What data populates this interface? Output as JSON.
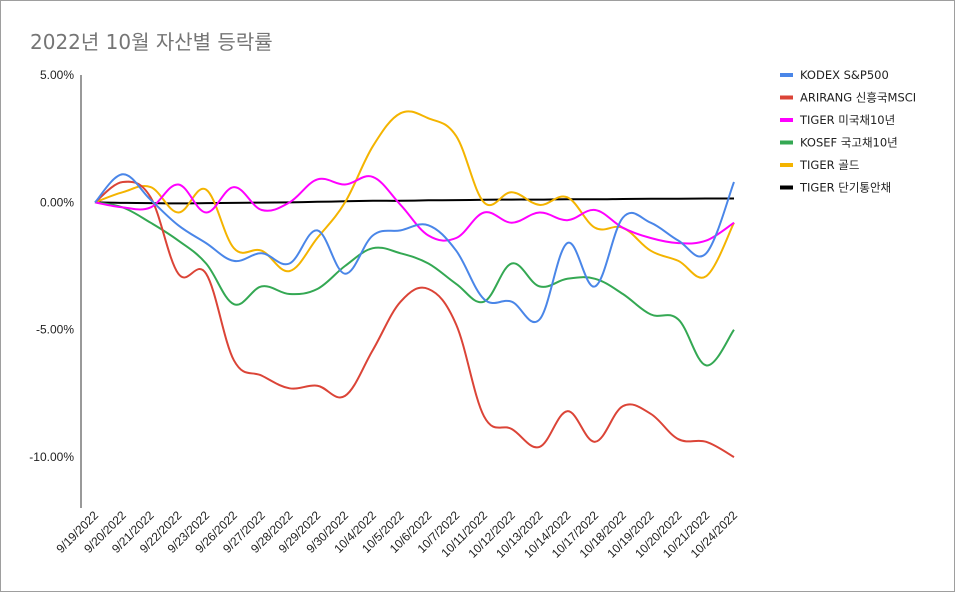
{
  "chart_data": {
    "type": "line",
    "title": "2022년 10월 자산별 등락률",
    "xlabel": "",
    "ylabel": "",
    "ylim": [
      -12,
      5
    ],
    "y_ticks": [
      "5.00%",
      "0.00%",
      "-5.00%",
      "-10.00%"
    ],
    "y_tick_values": [
      5,
      0,
      -5,
      -10
    ],
    "grid": false,
    "legend_position": "right",
    "categories": [
      "9/19/2022",
      "9/20/2022",
      "9/21/2022",
      "9/22/2022",
      "9/23/2022",
      "9/26/2022",
      "9/27/2022",
      "9/28/2022",
      "9/29/2022",
      "9/30/2022",
      "10/4/2022",
      "10/5/2022",
      "10/6/2022",
      "10/7/2022",
      "10/11/2022",
      "10/12/2022",
      "10/13/2022",
      "10/14/2022",
      "10/17/2022",
      "10/18/2022",
      "10/19/2022",
      "10/20/2022",
      "10/21/2022",
      "10/24/2022"
    ],
    "series": [
      {
        "name": "KODEX S&P500",
        "color": "#4a86e8",
        "values": [
          0,
          1.1,
          0.1,
          -0.9,
          -1.6,
          -2.3,
          -2.0,
          -2.4,
          -1.1,
          -2.8,
          -1.3,
          -1.1,
          -0.9,
          -1.9,
          -3.8,
          -3.9,
          -4.6,
          -1.6,
          -3.3,
          -0.6,
          -0.8,
          -1.5,
          -2.0,
          0.8
        ]
      },
      {
        "name": "ARIRANG 신흥국MSCI",
        "color": "#db4437",
        "values": [
          0,
          0.8,
          0.2,
          -2.8,
          -2.8,
          -6.2,
          -6.8,
          -7.3,
          -7.2,
          -7.6,
          -5.8,
          -3.9,
          -3.4,
          -4.8,
          -8.4,
          -8.9,
          -9.6,
          -8.2,
          -9.4,
          -8.0,
          -8.3,
          -9.3,
          -9.4,
          -10.0
        ]
      },
      {
        "name": "TIGER 미국채10년",
        "color": "#ff00ff",
        "values": [
          0,
          -0.2,
          -0.2,
          0.7,
          -0.4,
          0.6,
          -0.3,
          0.0,
          0.9,
          0.7,
          1.0,
          -0.1,
          -1.3,
          -1.4,
          -0.4,
          -0.8,
          -0.4,
          -0.7,
          -0.3,
          -1.0,
          -1.4,
          -1.6,
          -1.5,
          -0.8
        ]
      },
      {
        "name": "KOSEF 국고채10년",
        "color": "#34a853",
        "values": [
          0,
          -0.2,
          -0.8,
          -1.5,
          -2.4,
          -4.0,
          -3.3,
          -3.6,
          -3.4,
          -2.5,
          -1.8,
          -2.0,
          -2.4,
          -3.2,
          -3.9,
          -2.4,
          -3.3,
          -3.0,
          -3.0,
          -3.6,
          -4.4,
          -4.6,
          -6.4,
          -5.0
        ]
      },
      {
        "name": "TIGER 골드",
        "color": "#f4b400",
        "values": [
          0,
          0.4,
          0.6,
          -0.4,
          0.5,
          -1.8,
          -1.9,
          -2.7,
          -1.4,
          0.0,
          2.2,
          3.5,
          3.3,
          2.6,
          0.0,
          0.4,
          -0.1,
          0.2,
          -1.0,
          -1.0,
          -1.9,
          -2.3,
          -2.9,
          -0.8
        ]
      },
      {
        "name": "TIGER 단기통안채",
        "color": "#000000",
        "values": [
          0,
          -0.02,
          -0.03,
          -0.04,
          -0.03,
          -0.02,
          -0.01,
          0.0,
          0.02,
          0.04,
          0.06,
          0.06,
          0.08,
          0.09,
          0.1,
          0.11,
          0.11,
          0.12,
          0.12,
          0.13,
          0.14,
          0.14,
          0.15,
          0.15
        ]
      }
    ]
  }
}
